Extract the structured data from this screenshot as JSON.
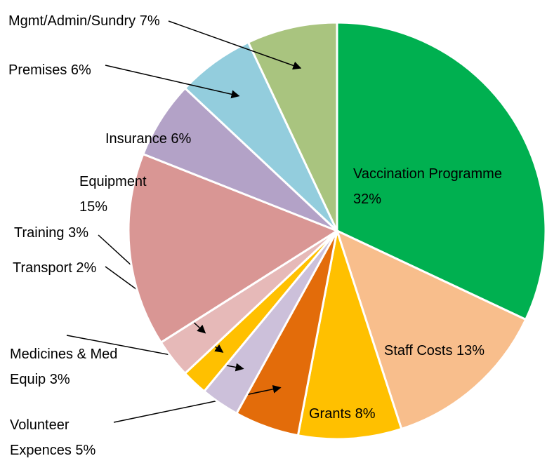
{
  "chart_data": {
    "type": "pie",
    "categories": [
      "Vaccination Programme",
      "Staff Costs",
      "Grants",
      "Volunteer Expences",
      "Medicines & Med Equip",
      "Transport",
      "Training",
      "Equipment",
      "Insurance",
      "Premises",
      "Mgmt/Admin/Sundry"
    ],
    "values": [
      32,
      13,
      8,
      5,
      3,
      2,
      3,
      15,
      6,
      6,
      7
    ],
    "value_labels": [
      "32%",
      "13%",
      "8%",
      "5%",
      "3%",
      "2%",
      "3%",
      "15%",
      "6%",
      "6%",
      "7%"
    ],
    "colors": [
      "#00b050",
      "#f8be8c",
      "#ffc000",
      "#e36c0a",
      "#ccc0da",
      "#ffc000",
      "#e6b9b8",
      "#d99694",
      "#b3a2c7",
      "#93cddd",
      "#a9c47f"
    ]
  }
}
